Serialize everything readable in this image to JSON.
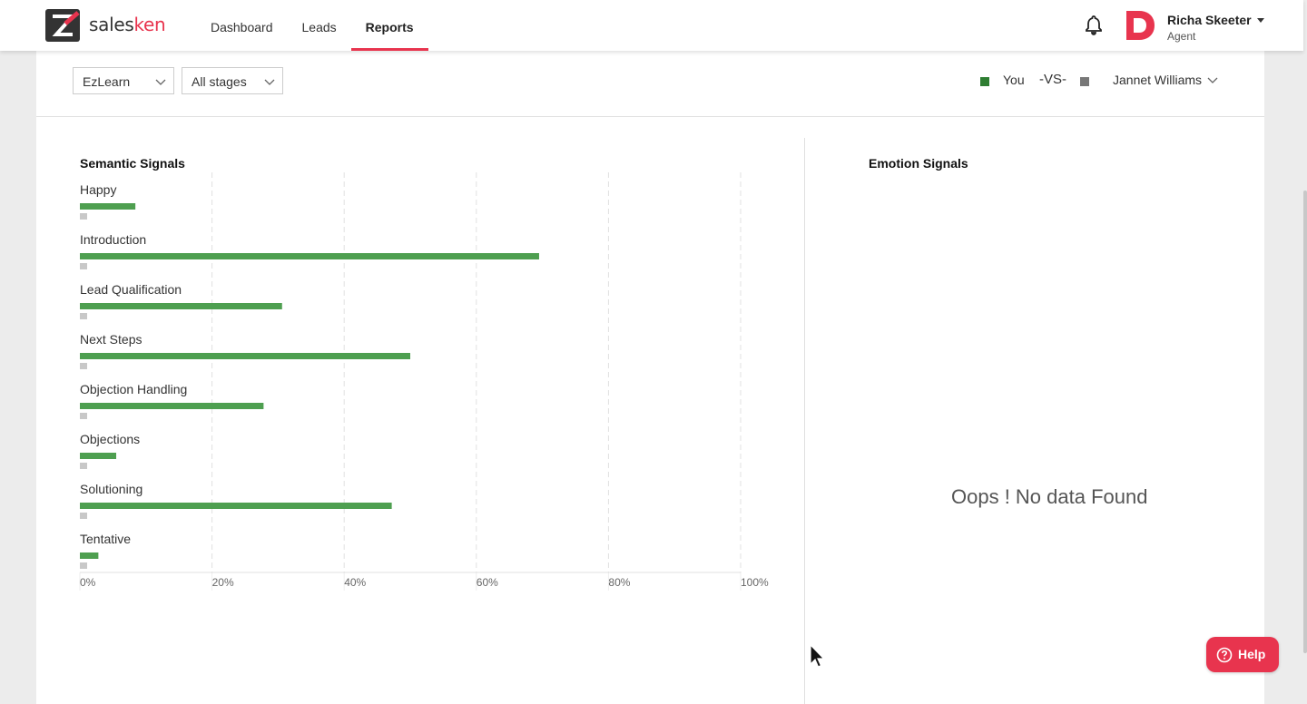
{
  "brand": {
    "part1": "sales",
    "part2": "ken"
  },
  "nav": {
    "items": [
      {
        "label": "Dashboard"
      },
      {
        "label": "Leads"
      },
      {
        "label": "Reports",
        "active": true
      }
    ]
  },
  "header": {
    "notification_icon": "bell-icon",
    "avatar_letter": "D",
    "user_name": "Richa Skeeter",
    "user_role": "Agent"
  },
  "filters": {
    "product": "EzLearn",
    "stage": "All stages"
  },
  "comparison": {
    "self_label": "You",
    "vs_label": "-VS-",
    "other_label": "Jannet Williams"
  },
  "panels": {
    "semantic_title": "Semantic Signals",
    "emotion_title": "Emotion Signals",
    "no_data_text": "Oops ! No data Found"
  },
  "help_button": {
    "label": "Help",
    "icon": "question-icon"
  },
  "colors": {
    "accent": "#e8344e",
    "you": "#4e9f50",
    "you_legend": "#2e7d32",
    "other": "#c8c8c8",
    "other_legend": "#777777"
  },
  "chart_data": {
    "type": "bar",
    "orientation": "horizontal",
    "title": "Semantic Signals",
    "categories": [
      "Happy",
      "Introduction",
      "Lead Qualification",
      "Next Steps",
      "Objection Handling",
      "Objections",
      "Solutioning",
      "Tentative"
    ],
    "series": [
      {
        "name": "You",
        "values": [
          8.4,
          69.5,
          30.6,
          50.0,
          27.8,
          5.5,
          47.2,
          2.8
        ]
      },
      {
        "name": "Jannet Williams",
        "values": [
          1.1,
          1.1,
          1.1,
          1.1,
          1.1,
          1.1,
          1.1,
          1.1
        ]
      }
    ],
    "xlim": [
      0,
      100
    ],
    "ticks": [
      "0%",
      "20%",
      "40%",
      "60%",
      "80%",
      "100%"
    ],
    "tick_values": [
      0,
      20,
      40,
      60,
      80,
      100
    ],
    "grid": "vertical dashed"
  }
}
